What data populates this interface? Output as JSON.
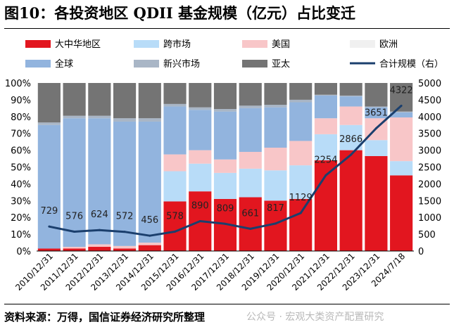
{
  "header": {
    "title": "图10：各投资地区 QDII 基金规模（亿元）占比变迁"
  },
  "footer": {
    "source": "资料来源：万得，国信证券经济研究所整理",
    "watermark": "公众号 · 宏观大类资产配置研究"
  },
  "colors": {
    "greater_china": "#e2161f",
    "cross_market": "#b8dcf8",
    "us": "#f8c6c8",
    "europe": "#ececec",
    "global": "#92b4de",
    "emerging": "#a9b6c6",
    "asia_pacific": "#747474",
    "total_line": "#1b3f6d"
  },
  "chart_data": {
    "type": "stacked-bar-with-line",
    "categories": [
      "2010/12/31",
      "2011/12/31",
      "2012/12/31",
      "2013/12/31",
      "2014/12/31",
      "2015/12/31",
      "2016/12/31",
      "2017/12/31",
      "2018/12/31",
      "2019/12/31",
      "2020/12/31",
      "2021/12/31",
      "2022/12/31",
      "2023/12/31",
      "2024/7/18"
    ],
    "series": [
      {
        "key": "greater_china",
        "name": "大中华地区",
        "values": [
          1.5,
          1.5,
          2.5,
          1.5,
          3.5,
          29.5,
          35.5,
          31,
          32,
          30,
          31,
          54,
          60,
          56.5,
          45
        ]
      },
      {
        "key": "cross_market",
        "name": "跨市场",
        "values": [
          0,
          0,
          0,
          0,
          0,
          18,
          16.5,
          15.5,
          17,
          18,
          20,
          15.5,
          15,
          9.5,
          8.5
        ]
      },
      {
        "key": "us",
        "name": "美国",
        "values": [
          0,
          1,
          1.5,
          1.5,
          1.5,
          10,
          8,
          8,
          10,
          13.5,
          14.5,
          9.5,
          11,
          13,
          26
        ]
      },
      {
        "key": "europe",
        "name": "欧洲",
        "values": [
          0,
          0,
          0,
          0,
          0,
          0,
          0,
          0,
          0,
          0,
          0,
          0,
          0,
          0,
          0
        ]
      },
      {
        "key": "global",
        "name": "全球",
        "values": [
          73.5,
          76.5,
          75,
          74,
          72,
          28.5,
          24,
          28.5,
          26,
          24,
          23,
          13.5,
          6,
          6.5,
          3
        ]
      },
      {
        "key": "emerging",
        "name": "新兴市场",
        "values": [
          1.5,
          1.5,
          1.5,
          2,
          2,
          1.5,
          1.5,
          1.5,
          1.5,
          1.5,
          1.5,
          0.5,
          0.5,
          0.5,
          0.5
        ]
      },
      {
        "key": "asia_pacific",
        "name": "亚太",
        "values": [
          23.5,
          19.5,
          19.5,
          21,
          21,
          12.5,
          14.5,
          15.5,
          13.5,
          13,
          10,
          7,
          7.5,
          14,
          17
        ]
      }
    ],
    "line": {
      "name": "合计规模（右）",
      "values": [
        729,
        576,
        624,
        572,
        456,
        578,
        890,
        809,
        661,
        817,
        1129,
        2254,
        2866,
        3651,
        4322
      ]
    },
    "y_left": {
      "min": 0,
      "max": 100,
      "step": 10,
      "unit": "%"
    },
    "y_right": {
      "min": 0,
      "max": 5000,
      "step": 500
    },
    "left_ticks": [
      "0%",
      "10%",
      "20%",
      "30%",
      "40%",
      "50%",
      "60%",
      "70%",
      "80%",
      "90%",
      "100%"
    ],
    "right_ticks": [
      "0",
      "500",
      "1000",
      "1500",
      "2000",
      "2500",
      "3000",
      "3500",
      "4000",
      "4500",
      "5000"
    ]
  }
}
